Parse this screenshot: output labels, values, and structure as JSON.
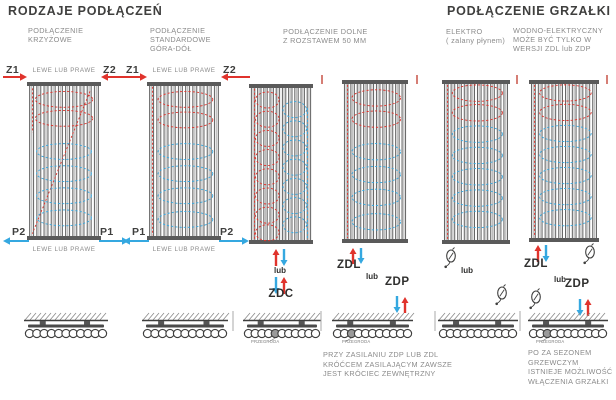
{
  "titles": {
    "left": "RODZAJE PODŁĄCZEŃ",
    "right": "PODŁĄCZENIE GRZAŁKI"
  },
  "columns": [
    {
      "label": "PODŁĄCZENIE\nKRZYŻOWE"
    },
    {
      "label": "PODŁĄCZENIE\nSTANDARDOWE\nGÓRA-DÓŁ"
    },
    {
      "label": "PODŁĄCZENIE DOLNE\nZ ROZSTAWEM 50 MM"
    },
    {
      "label": "ELEKTRO\n( zalany płynem)"
    },
    {
      "label": "WODNO-ELEKTRYCZNY\nMOŻE BYĆ TYLKO W\nWERSJI ZDL lub ZDP"
    }
  ],
  "radiators": {
    "r1": {
      "top_left": "Z1",
      "top_right": "Z2",
      "bottom_left": "P2",
      "bottom_right": "P1",
      "top_note": "LEWE LUB PRAWE",
      "bottom_note": "LEWE LUB PRAWE"
    },
    "r2": {
      "top_left": "Z1",
      "top_right": "Z2",
      "bottom_left": "P1",
      "bottom_right": "P2",
      "top_note": "LEWE LUB PRAWE",
      "bottom_note": "LEWE LUB PRAWE"
    },
    "r3": {
      "or": "lub",
      "code": "ZDC"
    },
    "r4": {
      "code_left": "ZDL",
      "or": "lub",
      "code_right": "ZDP"
    },
    "r5": {
      "or": "lub"
    },
    "r6": {
      "code_left": "ZDL",
      "or": "lub",
      "code_right": "ZDP"
    }
  },
  "floor": {
    "partition_label": "PRZEGRODA"
  },
  "notes": {
    "supply": "PRZY ZASILANIU ZDP LUB ZDL\nKRÓĆCEM ZASILAJĄCYM ZAWSZE\nJEST KRÓCIEC ZEWNĘTRZNY",
    "season": "PO ZA SEZONEM\nGRZEWCZYM\nISTNIEJE MOŻLIWOŚĆ\nWŁĄCZENIA GRZAŁKI"
  },
  "icons": {
    "heater": "heating-element-icon"
  },
  "colors": {
    "supply_red": "#e0332c",
    "return_blue": "#35a8e0",
    "metal_dark": "#5a5a5a",
    "tube_edge": "#636363",
    "tube_fill": "#ececec",
    "text_dark": "#3f3f3e",
    "text_gray": "#8b8b8b"
  }
}
